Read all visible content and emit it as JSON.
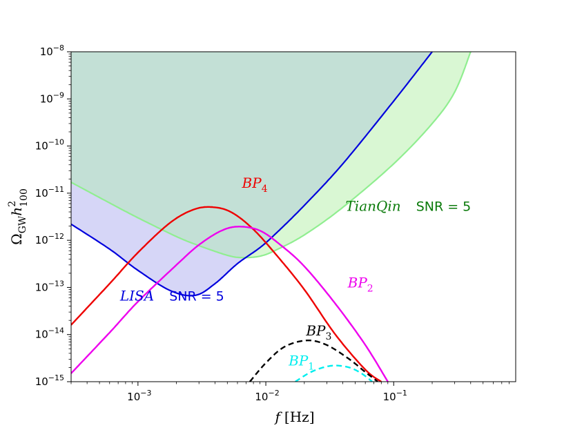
{
  "chart_data": {
    "type": "line",
    "x_scale": "log",
    "y_scale": "log",
    "xlim": [
      0.0003,
      0.9
    ],
    "ylim": [
      1e-15,
      1e-08
    ],
    "xlabel_main": "f",
    "xlabel_unit": "[Hz]",
    "ylabel_base": "Ω",
    "ylabel_sub": "GW",
    "ylabel_h": "h",
    "ylabel_h_sup": "2",
    "ylabel_h_sub": "100",
    "x_ticks": [
      {
        "value": 0.001,
        "base": "10",
        "exp": "−3"
      },
      {
        "value": 0.01,
        "base": "10",
        "exp": "−2"
      },
      {
        "value": 0.1,
        "base": "10",
        "exp": "−1"
      }
    ],
    "y_ticks": [
      {
        "value": 1e-15,
        "base": "10",
        "exp": "−15"
      },
      {
        "value": 1e-14,
        "base": "10",
        "exp": "−14"
      },
      {
        "value": 1e-13,
        "base": "10",
        "exp": "−13"
      },
      {
        "value": 1e-12,
        "base": "10",
        "exp": "−12"
      },
      {
        "value": 1e-11,
        "base": "10",
        "exp": "−11"
      },
      {
        "value": 1e-10,
        "base": "10",
        "exp": "−10"
      },
      {
        "value": 1e-09,
        "base": "10",
        "exp": "−9"
      },
      {
        "value": 1e-08,
        "base": "10",
        "exp": "−8"
      }
    ],
    "sensitivity_curves": [
      {
        "name": "LISA",
        "snr_label": "SNR = 5",
        "color": "#0000dd",
        "fill": "#d6d6f7",
        "x": [
          0.0003,
          0.0006,
          0.001,
          0.0018,
          0.0028,
          0.004,
          0.006,
          0.009,
          0.012,
          0.02,
          0.04,
          0.1,
          0.2
        ],
        "y": [
          2.2e-12,
          6.5e-13,
          2.3e-13,
          8.5e-14,
          6.8e-14,
          1.2e-13,
          3.2e-13,
          7e-13,
          1.4e-12,
          5.5e-12,
          4.2e-11,
          9e-10,
          1e-08
        ]
      },
      {
        "name": "TianQin",
        "snr_label": "SNR = 5",
        "color": "#90ee90",
        "fill": "#d9f7d3",
        "x": [
          0.0003,
          0.0006,
          0.001,
          0.002,
          0.003,
          0.005,
          0.0065,
          0.009,
          0.012,
          0.02,
          0.04,
          0.1,
          0.2,
          0.3,
          0.4
        ],
        "y": [
          1.7e-11,
          6.2e-12,
          3e-12,
          1.2e-12,
          7.7e-13,
          4.8e-13,
          4.3e-13,
          4.6e-13,
          6.2e-13,
          1.3e-12,
          5e-12,
          4.2e-11,
          3e-10,
          1.4e-09,
          1e-08
        ]
      }
    ],
    "overlap_fill": "#c3e0d6",
    "series": [
      {
        "name": "BP",
        "sub": "4",
        "color": "#ee0000",
        "dashed": false,
        "x": [
          0.0003,
          0.0006,
          0.001,
          0.0018,
          0.0028,
          0.004,
          0.0055,
          0.008,
          0.012,
          0.02,
          0.035,
          0.06,
          0.08
        ],
        "y": [
          1.6e-14,
          1.2e-13,
          5.5e-13,
          2.4e-12,
          4.6e-12,
          5e-12,
          3.8e-12,
          1.7e-12,
          5e-13,
          9e-14,
          1e-14,
          1.8e-15,
          1e-15
        ]
      },
      {
        "name": "BP",
        "sub": "2",
        "color": "#ee00ee",
        "dashed": false,
        "x": [
          0.0003,
          0.0006,
          0.001,
          0.002,
          0.003,
          0.0045,
          0.0062,
          0.009,
          0.013,
          0.02,
          0.035,
          0.06,
          0.09
        ],
        "y": [
          1.5e-15,
          1.1e-14,
          5e-14,
          3e-13,
          8e-13,
          1.6e-12,
          1.95e-12,
          1.6e-12,
          8e-13,
          2.8e-13,
          4.5e-14,
          6e-15,
          1e-15
        ]
      },
      {
        "name": "BP",
        "sub": "3",
        "color": "#000000",
        "dashed": true,
        "x": [
          0.0075,
          0.01,
          0.014,
          0.021,
          0.03,
          0.045,
          0.06,
          0.075
        ],
        "y": [
          1e-15,
          2.5e-15,
          5.5e-15,
          7.5e-15,
          6e-15,
          3e-15,
          1.6e-15,
          1e-15
        ]
      },
      {
        "name": "BP",
        "sub": "1",
        "color": "#00eeee",
        "dashed": true,
        "x": [
          0.017,
          0.022,
          0.028,
          0.035,
          0.045,
          0.056,
          0.068
        ],
        "y": [
          1e-15,
          1.55e-15,
          2e-15,
          2.2e-15,
          2e-15,
          1.5e-15,
          1e-15
        ]
      }
    ],
    "annotations": [
      {
        "id": "bp4",
        "name": "BP",
        "sub": "4",
        "color": "#ee0000",
        "x": 0.0082,
        "y": 1.3e-11
      },
      {
        "id": "bp2",
        "name": "BP",
        "sub": "2",
        "color": "#ee00ee",
        "x": 0.055,
        "y": 1e-13
      },
      {
        "id": "bp3",
        "name": "BP",
        "sub": "3",
        "color": "#000000",
        "x": 0.026,
        "y": 9.5e-15
      },
      {
        "id": "bp1",
        "name": "BP",
        "sub": "1",
        "color": "#00eeee",
        "x": 0.019,
        "y": 2.2e-15
      },
      {
        "id": "lisa",
        "name": "LISA",
        "snr": "SNR = 5",
        "color": "#0000dd",
        "x": 0.00185,
        "y": 5.3e-14
      },
      {
        "id": "tianqin",
        "name": "TianQin",
        "snr": "SNR = 5",
        "color": "#0a7a0a",
        "x": 0.13,
        "y": 4.2e-12
      }
    ]
  }
}
